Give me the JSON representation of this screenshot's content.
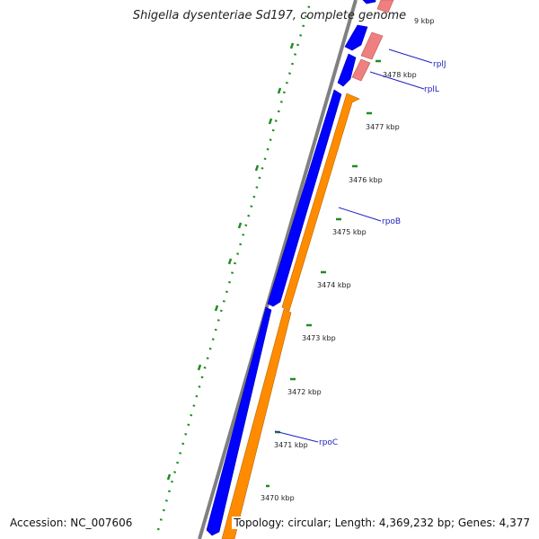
{
  "title": "Shigella dysenteriae Sd197, complete genome",
  "accession": "Accession: NC_007606",
  "topology": "Topology: circular; Length: 4,369,232 bp; Genes: 4,377",
  "ticks": [
    "3470 kbp",
    "3471 kbp",
    "3472 kbp",
    "3473 kbp",
    "3474 kbp",
    "3475 kbp",
    "3476 kbp",
    "3477 kbp",
    "3478 kbp",
    "9 kbp"
  ],
  "genes": [
    "rpoC",
    "rpoB",
    "rplL",
    "rplJ"
  ],
  "colors": {
    "backbone": "#808080",
    "cds_forward": "#0000ff",
    "cds_reverse": "#ff8c00",
    "rrna_like": "#f08080",
    "gc_skew": "#228b22",
    "label": "#2020c0"
  }
}
